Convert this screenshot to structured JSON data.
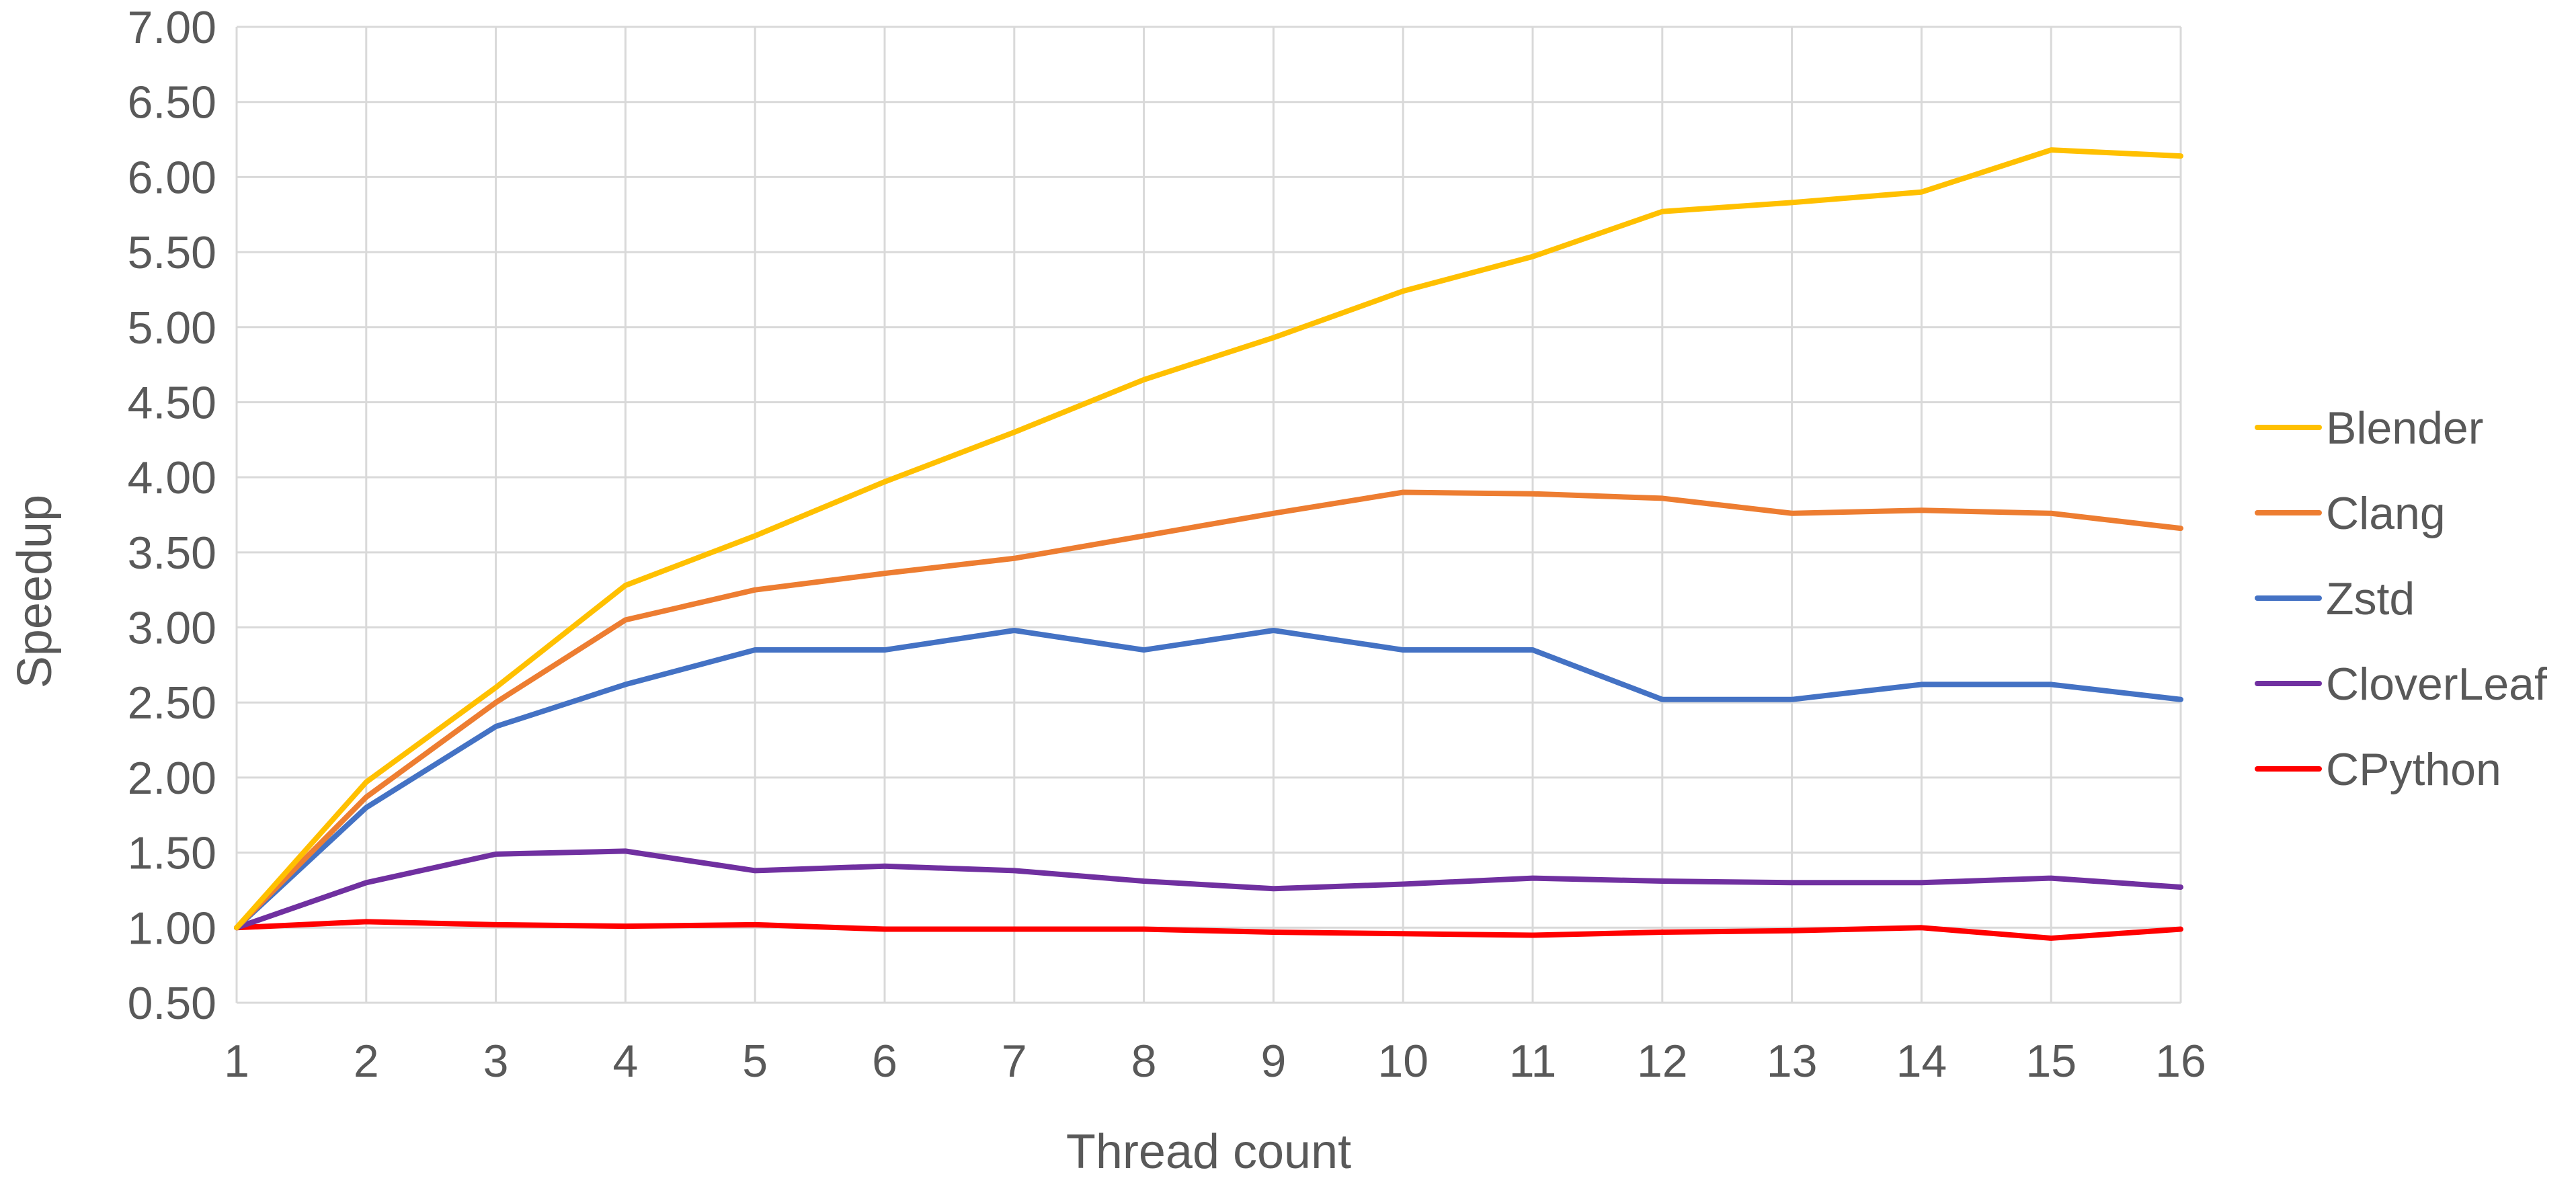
{
  "chart_data": {
    "type": "line",
    "title": "",
    "xlabel": "Thread count",
    "ylabel": "Speedup",
    "x": [
      1,
      2,
      3,
      4,
      5,
      6,
      7,
      8,
      9,
      10,
      11,
      12,
      13,
      14,
      15,
      16
    ],
    "xticks": [
      "1",
      "2",
      "3",
      "4",
      "5",
      "6",
      "7",
      "8",
      "9",
      "10",
      "11",
      "12",
      "13",
      "14",
      "15",
      "16"
    ],
    "ylim": [
      0.5,
      7.0
    ],
    "yticks": [
      "0.50",
      "1.00",
      "1.50",
      "2.00",
      "2.50",
      "3.00",
      "3.50",
      "4.00",
      "4.50",
      "5.00",
      "5.50",
      "6.00",
      "6.50",
      "7.00"
    ],
    "grid": true,
    "legend_position": "right",
    "series": [
      {
        "name": "Blender",
        "color": "#FFC000",
        "values": [
          1.0,
          1.97,
          2.6,
          3.28,
          3.61,
          3.97,
          4.3,
          4.65,
          4.93,
          5.24,
          5.47,
          5.77,
          5.83,
          5.9,
          6.18,
          6.14
        ]
      },
      {
        "name": "Clang",
        "color": "#ED7D31",
        "values": [
          1.0,
          1.87,
          2.5,
          3.05,
          3.25,
          3.36,
          3.46,
          3.61,
          3.76,
          3.9,
          3.89,
          3.86,
          3.76,
          3.78,
          3.76,
          3.66
        ]
      },
      {
        "name": "Zstd",
        "color": "#4472C4",
        "values": [
          1.0,
          1.8,
          2.34,
          2.62,
          2.85,
          2.85,
          2.98,
          2.85,
          2.98,
          2.85,
          2.85,
          2.52,
          2.52,
          2.62,
          2.62,
          2.52
        ]
      },
      {
        "name": "CloverLeaf",
        "color": "#7030A0",
        "values": [
          1.0,
          1.3,
          1.49,
          1.51,
          1.38,
          1.41,
          1.38,
          1.31,
          1.26,
          1.29,
          1.33,
          1.31,
          1.3,
          1.3,
          1.33,
          1.27
        ]
      },
      {
        "name": "CPython",
        "color": "#FF0000",
        "values": [
          1.0,
          1.04,
          1.02,
          1.01,
          1.02,
          0.99,
          0.99,
          0.99,
          0.97,
          0.96,
          0.95,
          0.97,
          0.98,
          1.0,
          0.93,
          0.99
        ]
      }
    ]
  }
}
